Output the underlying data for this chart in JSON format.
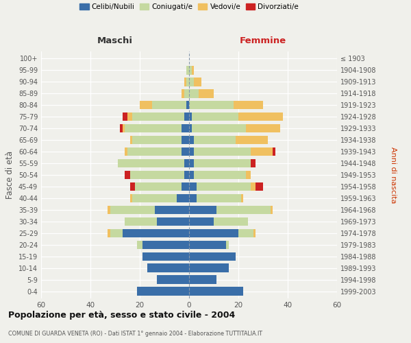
{
  "age_groups": [
    "0-4",
    "5-9",
    "10-14",
    "15-19",
    "20-24",
    "25-29",
    "30-34",
    "35-39",
    "40-44",
    "45-49",
    "50-54",
    "55-59",
    "60-64",
    "65-69",
    "70-74",
    "75-79",
    "80-84",
    "85-89",
    "90-94",
    "95-99",
    "100+"
  ],
  "birth_years": [
    "1999-2003",
    "1994-1998",
    "1989-1993",
    "1984-1988",
    "1979-1983",
    "1974-1978",
    "1969-1973",
    "1964-1968",
    "1959-1963",
    "1954-1958",
    "1949-1953",
    "1944-1948",
    "1939-1943",
    "1934-1938",
    "1929-1933",
    "1924-1928",
    "1919-1923",
    "1914-1918",
    "1909-1913",
    "1904-1908",
    "≤ 1903"
  ],
  "maschi": {
    "celibi": [
      21,
      13,
      17,
      19,
      19,
      27,
      13,
      14,
      5,
      3,
      2,
      2,
      3,
      3,
      3,
      2,
      1,
      0,
      0,
      0,
      0
    ],
    "coniugati": [
      0,
      0,
      0,
      0,
      2,
      5,
      13,
      18,
      18,
      19,
      22,
      27,
      22,
      20,
      23,
      21,
      14,
      2,
      1,
      1,
      0
    ],
    "vedovi": [
      0,
      0,
      0,
      0,
      0,
      1,
      0,
      1,
      1,
      0,
      0,
      0,
      1,
      1,
      1,
      2,
      5,
      1,
      1,
      0,
      0
    ],
    "divorziati": [
      0,
      0,
      0,
      0,
      0,
      0,
      0,
      0,
      0,
      2,
      2,
      0,
      0,
      0,
      1,
      2,
      0,
      0,
      0,
      0,
      0
    ]
  },
  "femmine": {
    "nubili": [
      22,
      11,
      16,
      19,
      15,
      20,
      10,
      11,
      3,
      3,
      2,
      2,
      2,
      2,
      1,
      1,
      0,
      0,
      0,
      0,
      0
    ],
    "coniugate": [
      0,
      0,
      0,
      0,
      1,
      6,
      14,
      22,
      18,
      22,
      21,
      23,
      23,
      17,
      22,
      19,
      18,
      4,
      2,
      1,
      0
    ],
    "vedove": [
      0,
      0,
      0,
      0,
      0,
      1,
      0,
      1,
      1,
      2,
      2,
      0,
      9,
      13,
      14,
      18,
      12,
      6,
      3,
      1,
      0
    ],
    "divorziate": [
      0,
      0,
      0,
      0,
      0,
      0,
      0,
      0,
      0,
      3,
      0,
      2,
      1,
      0,
      0,
      0,
      0,
      0,
      0,
      0,
      0
    ]
  },
  "colors": {
    "celibi": "#3a6ea8",
    "coniugati": "#c5d9a0",
    "vedovi": "#f0c060",
    "divorziati": "#cc2222"
  },
  "xlim": 60,
  "title": "Popolazione per età, sesso e stato civile - 2004",
  "subtitle": "COMUNE DI GUARDA VENETA (RO) - Dati ISTAT 1° gennaio 2004 - Elaborazione TUTTITALIA.IT",
  "ylabel": "Fasce di età",
  "ylabel_right": "Anni di nascita",
  "legend_labels": [
    "Celibi/Nubili",
    "Coniugati/e",
    "Vedovi/e",
    "Divorziati/e"
  ],
  "bg_color": "#f0f0eb",
  "bar_height": 0.75
}
